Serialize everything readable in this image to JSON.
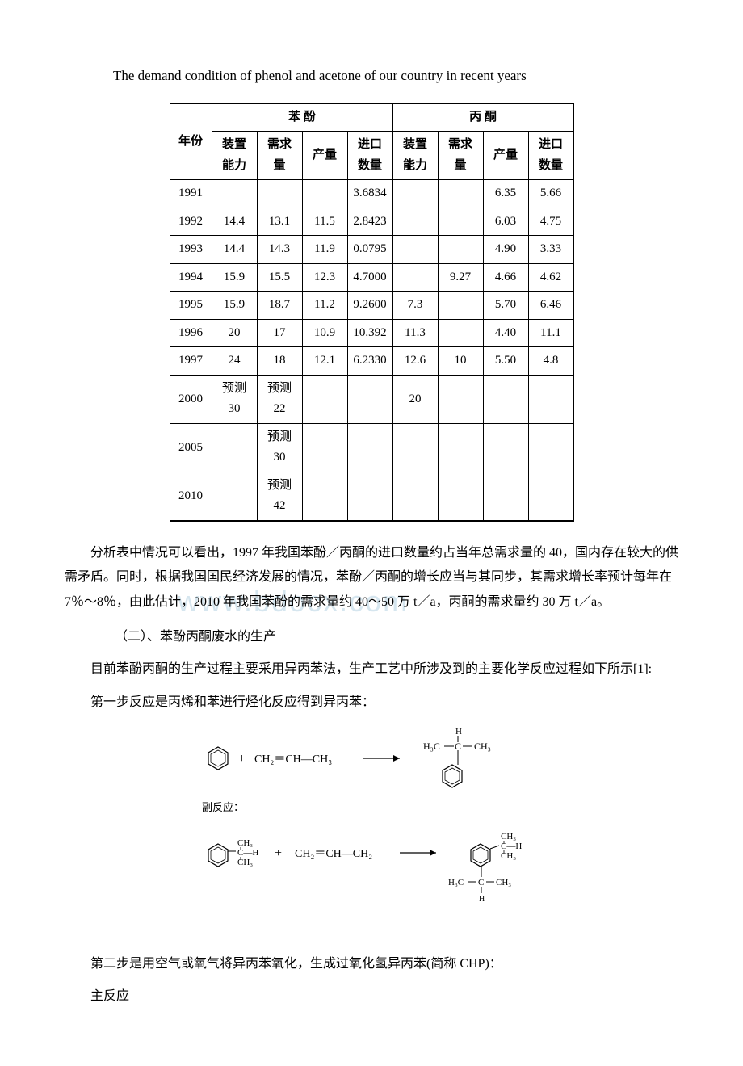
{
  "title": "The demand condition of phenol and acetone of our country in recent years",
  "table": {
    "group_headers": {
      "col_year": "年份",
      "phenol": "苯    酚",
      "acetone": "丙    酮"
    },
    "sub_headers": {
      "capacity": "装置\n能力",
      "demand": "需求量",
      "yield": "产量",
      "import": "进口\n数量",
      "capacity2": "装置\n能力",
      "demand2": "需求量",
      "yield2": "产量",
      "import2": "进口\n数量"
    },
    "rows": [
      {
        "year": "1991",
        "p_cap": "",
        "p_dem": "",
        "p_yld": "",
        "p_imp": "3.6834",
        "a_cap": "",
        "a_dem": "",
        "a_yld": "6.35",
        "a_imp": "5.66"
      },
      {
        "year": "1992",
        "p_cap": "14.4",
        "p_dem": "13.1",
        "p_yld": "11.5",
        "p_imp": "2.8423",
        "a_cap": "",
        "a_dem": "",
        "a_yld": "6.03",
        "a_imp": "4.75"
      },
      {
        "year": "1993",
        "p_cap": "14.4",
        "p_dem": "14.3",
        "p_yld": "11.9",
        "p_imp": "0.0795",
        "a_cap": "",
        "a_dem": "",
        "a_yld": "4.90",
        "a_imp": "3.33"
      },
      {
        "year": "1994",
        "p_cap": "15.9",
        "p_dem": "15.5",
        "p_yld": "12.3",
        "p_imp": "4.7000",
        "a_cap": "",
        "a_dem": "9.27",
        "a_yld": "4.66",
        "a_imp": "4.62"
      },
      {
        "year": "1995",
        "p_cap": "15.9",
        "p_dem": "18.7",
        "p_yld": "11.2",
        "p_imp": "9.2600",
        "a_cap": "7.3",
        "a_dem": "",
        "a_yld": "5.70",
        "a_imp": "6.46"
      },
      {
        "year": "1996",
        "p_cap": "20",
        "p_dem": "17",
        "p_yld": "10.9",
        "p_imp": "10.392",
        "a_cap": "11.3",
        "a_dem": "",
        "a_yld": "4.40",
        "a_imp": "11.1"
      },
      {
        "year": "1997",
        "p_cap": "24",
        "p_dem": "18",
        "p_yld": "12.1",
        "p_imp": "6.2330",
        "a_cap": "12.6",
        "a_dem": "10",
        "a_yld": "5.50",
        "a_imp": "4.8"
      },
      {
        "year": "2000",
        "p_cap": "预测 30",
        "p_dem": "预测 22",
        "p_yld": "",
        "p_imp": "",
        "a_cap": "20",
        "a_dem": "",
        "a_yld": "",
        "a_imp": ""
      },
      {
        "year": "2005",
        "p_cap": "",
        "p_dem": "预测 30",
        "p_yld": "",
        "p_imp": "",
        "a_cap": "",
        "a_dem": "",
        "a_yld": "",
        "a_imp": ""
      },
      {
        "year": "2010",
        "p_cap": "",
        "p_dem": "预测 42",
        "p_yld": "",
        "p_imp": "",
        "a_cap": "",
        "a_dem": "",
        "a_yld": "",
        "a_imp": ""
      }
    ]
  },
  "para1": "分析表中情况可以看出，1997 年我国苯酚／丙酮的进口数量约占当年总需求量的 40，国内存在较大的供需矛盾。同时，根据我国国民经济发展的情况，苯酚／丙酮的增长应当与其同步，其需求增长率预计每年在 7％～8％，由此估计，2010 年我国苯酚的需求量约 40～50 万 t／a，丙酮的需求量约 30 万 t／a。",
  "subheading1": "（二）、苯酚丙酮废水的生产",
  "para2": "目前苯酚丙酮的生产过程主要采用异丙苯法，生产工艺中所涉及到的主要化学反应过程如下所示[1]:",
  "para3": "第一步反应是丙烯和苯进行烃化反应得到异丙苯：",
  "para4": "第二步是用空气或氧气将异丙苯氧化，生成过氧化氢异丙苯(简称 CHP)：",
  "para5": "主反应",
  "watermark": "www.bdocx.com",
  "chem": {
    "side_reaction_label": "副反应：",
    "reactant1": "CH₂＝CH—CH₃",
    "reactant2": "CH₂＝CH—CH₂",
    "ch3": "CH₃",
    "h3c": "H₃C",
    "h": "H",
    "c": "C",
    "ch": "C—H"
  },
  "colors": {
    "text": "#000000",
    "background": "#ffffff",
    "watermark": "#d6e6ef",
    "border": "#000000"
  }
}
